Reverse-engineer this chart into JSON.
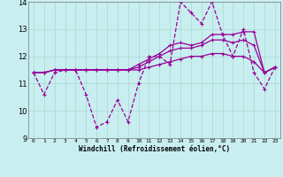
{
  "xlabel": "Windchill (Refroidissement éolien,°C)",
  "xlim": [
    -0.5,
    23.5
  ],
  "ylim": [
    9,
    14
  ],
  "yticks": [
    9,
    10,
    11,
    12,
    13,
    14
  ],
  "xticks": [
    0,
    1,
    2,
    3,
    4,
    5,
    6,
    7,
    8,
    9,
    10,
    11,
    12,
    13,
    14,
    15,
    16,
    17,
    18,
    19,
    20,
    21,
    22,
    23
  ],
  "background_color": "#c8eef0",
  "grid_color": "#aad8d0",
  "line_color": "#990099",
  "figsize": [
    3.2,
    2.0
  ],
  "dpi": 100,
  "series": [
    [
      11.4,
      10.6,
      11.4,
      11.5,
      11.5,
      10.6,
      9.4,
      9.6,
      10.4,
      9.6,
      11.0,
      12.0,
      12.0,
      11.7,
      14.0,
      13.6,
      13.2,
      14.0,
      12.8,
      12.0,
      13.0,
      11.4,
      10.8,
      11.6
    ],
    [
      11.4,
      11.4,
      11.5,
      11.5,
      11.5,
      11.5,
      11.5,
      11.5,
      11.5,
      11.5,
      11.7,
      11.9,
      12.1,
      12.4,
      12.5,
      12.4,
      12.5,
      12.8,
      12.8,
      12.8,
      12.9,
      12.9,
      11.4,
      11.6
    ],
    [
      11.4,
      11.4,
      11.5,
      11.5,
      11.5,
      11.5,
      11.5,
      11.5,
      11.5,
      11.5,
      11.6,
      11.8,
      12.0,
      12.2,
      12.3,
      12.3,
      12.4,
      12.6,
      12.6,
      12.5,
      12.6,
      12.4,
      11.4,
      11.6
    ],
    [
      11.4,
      11.4,
      11.5,
      11.5,
      11.5,
      11.5,
      11.5,
      11.5,
      11.5,
      11.5,
      11.5,
      11.6,
      11.7,
      11.8,
      11.9,
      12.0,
      12.0,
      12.1,
      12.1,
      12.0,
      12.0,
      11.8,
      11.4,
      11.6
    ]
  ],
  "linestyles": [
    "--",
    "-",
    "-",
    "-"
  ],
  "linewidths": [
    0.9,
    0.9,
    0.9,
    0.9
  ]
}
